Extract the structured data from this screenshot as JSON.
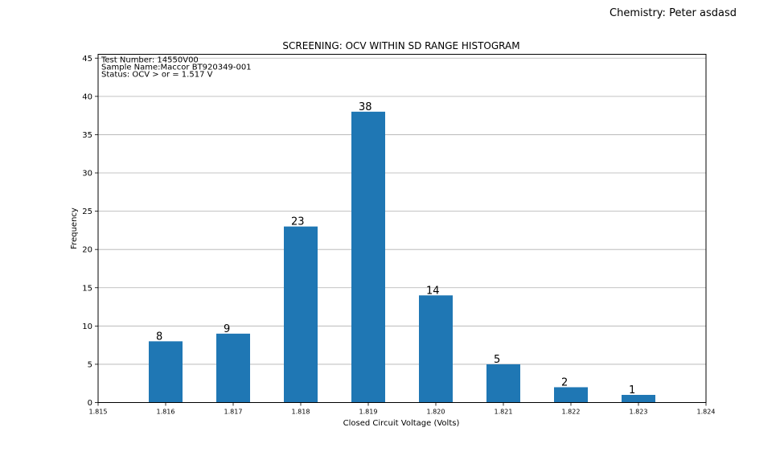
{
  "header": {
    "chemistry_label": "Chemistry: Peter asdasd"
  },
  "chart_data": {
    "type": "bar",
    "title": "SCREENING: OCV WITHIN SD RANGE HISTOGRAM",
    "xlabel": "Closed Circuit Voltage (Volts)",
    "ylabel": "Frequency",
    "annotations": [
      "Test Number: 14550V00",
      "Sample Name:Maccor BT920349-001",
      "Status: OCV > or = 1.517 V"
    ],
    "x": [
      1.816,
      1.817,
      1.818,
      1.819,
      1.82,
      1.821,
      1.822,
      1.823
    ],
    "values": [
      8,
      9,
      23,
      38,
      14,
      5,
      2,
      1
    ],
    "value_labels": [
      "8",
      "9",
      "23",
      "38",
      "14",
      "5",
      "2",
      "1"
    ],
    "bar_width": 0.0005,
    "xlim": [
      1.815,
      1.824
    ],
    "ylim": [
      0,
      45.5
    ],
    "xticks": [
      1.815,
      1.816,
      1.817,
      1.818,
      1.819,
      1.82,
      1.821,
      1.822,
      1.823,
      1.824
    ],
    "xtick_labels": [
      "1.815",
      "1.816",
      "1.817",
      "1.818",
      "1.819",
      "1.820",
      "1.821",
      "1.822",
      "1.823",
      "1.824"
    ],
    "yticks": [
      0,
      5,
      10,
      15,
      20,
      25,
      30,
      35,
      40,
      45
    ],
    "ytick_labels": [
      "0",
      "5",
      "10",
      "15",
      "20",
      "25",
      "30",
      "35",
      "40",
      "45"
    ],
    "grid": "horizontal",
    "colors": {
      "bar": "#1f77b4",
      "grid": "#b0b0b0"
    }
  }
}
